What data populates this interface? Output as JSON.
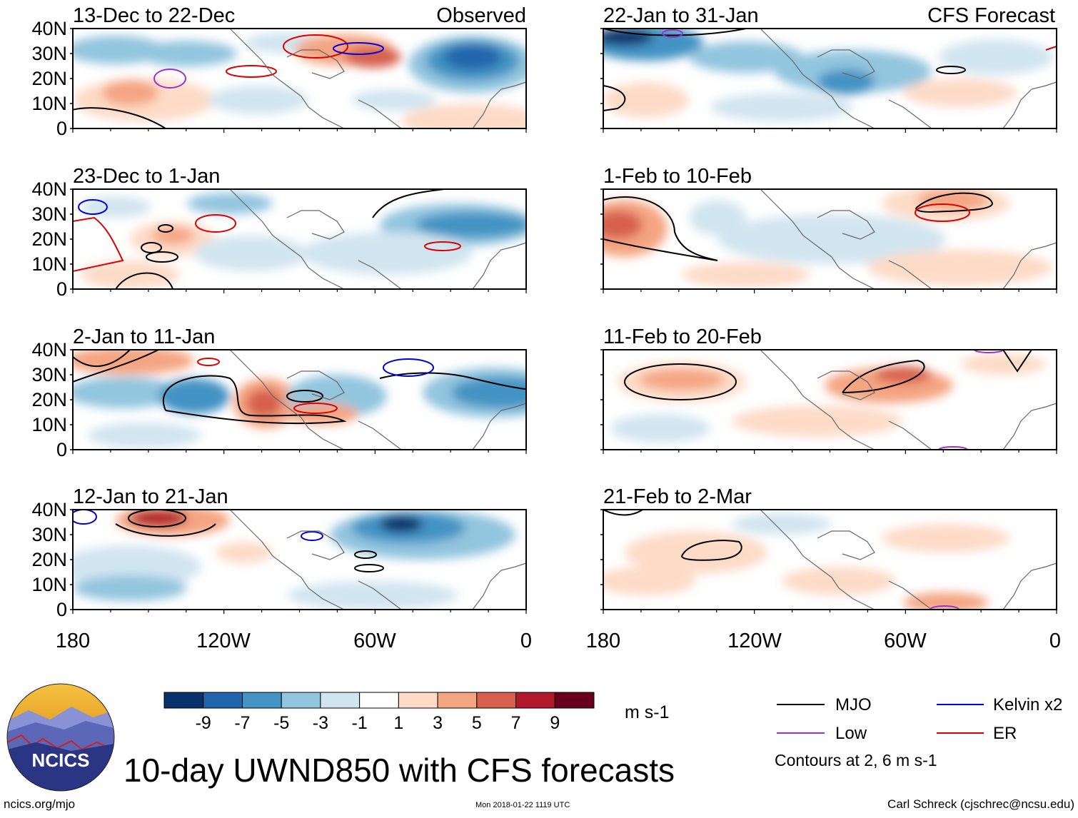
{
  "title": "10-day UWND850 with CFS forecasts",
  "footer": {
    "website": "ncics.org/mjo",
    "timestamp": "Mon 2018-01-22 1119 UTC",
    "author": "Carl Schreck (cjschrec@ncsu.edu)"
  },
  "logo": {
    "text": "NCICS"
  },
  "column_labels": {
    "left": "Observed",
    "right": "CFS Forecast"
  },
  "axes": {
    "y_ticks": [
      "40N",
      "30N",
      "20N",
      "10N",
      "0"
    ],
    "x_ticks": [
      "180",
      "120W",
      "60W",
      "0"
    ],
    "lat_range": [
      0,
      40
    ],
    "lon_range": [
      -180,
      0
    ]
  },
  "panels": [
    {
      "id": "p1",
      "title": "13-Dec to 22-Dec",
      "kind": "Observed"
    },
    {
      "id": "p2",
      "title": "23-Dec to 1-Jan",
      "kind": "Observed"
    },
    {
      "id": "p3",
      "title": "2-Jan to 11-Jan",
      "kind": "Observed"
    },
    {
      "id": "p4",
      "title": "12-Jan to 21-Jan",
      "kind": "Observed"
    },
    {
      "id": "p5",
      "title": "22-Jan to 31-Jan",
      "kind": "CFS Forecast"
    },
    {
      "id": "p6",
      "title": "1-Feb to 10-Feb",
      "kind": "CFS Forecast"
    },
    {
      "id": "p7",
      "title": "11-Feb to 20-Feb",
      "kind": "CFS Forecast"
    },
    {
      "id": "p8",
      "title": "21-Feb to 2-Mar",
      "kind": "CFS Forecast"
    }
  ],
  "colorbar": {
    "labels": [
      "-9",
      "-7",
      "-5",
      "-3",
      "-1",
      "1",
      "3",
      "5",
      "7",
      "9"
    ],
    "colors": [
      "#08306b",
      "#2166ac",
      "#4393c3",
      "#92c5de",
      "#d1e5f0",
      "#ffffff",
      "#fddbc7",
      "#f4a582",
      "#d6604d",
      "#b2182b",
      "#67001f"
    ],
    "units": "m s-1"
  },
  "legend": {
    "items": [
      {
        "label": "MJO",
        "color": "#000000"
      },
      {
        "label": "Kelvin x2",
        "color": "#0000dd"
      },
      {
        "label": "Low",
        "color": "#9932cc"
      },
      {
        "label": "ER",
        "color": "#dd0000"
      }
    ],
    "note": "Contours at 2, 6 m s-1"
  }
}
